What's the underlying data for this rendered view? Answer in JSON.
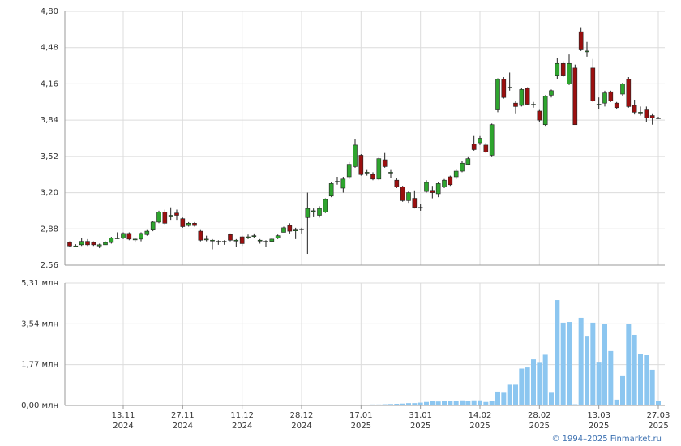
{
  "chart_data": [
    {
      "type": "candlestick",
      "up_color": "#2ea52e",
      "down_color": "#9b0f0f",
      "open": [
        2.76,
        2.73,
        2.74,
        2.77,
        2.76,
        2.73,
        2.74,
        2.76,
        2.8,
        2.8,
        2.84,
        2.79,
        2.79,
        2.83,
        2.87,
        2.94,
        3.03,
        3.0,
        3.02,
        2.97,
        2.91,
        2.93,
        2.86,
        2.79,
        2.78,
        2.77,
        2.77,
        2.83,
        2.78,
        2.81,
        2.81,
        2.82,
        2.78,
        2.77,
        2.77,
        2.8,
        2.85,
        2.91,
        2.87,
        2.88,
        2.98,
        3.04,
        3.0,
        3.03,
        3.17,
        3.3,
        3.24,
        3.34,
        3.43,
        3.53,
        3.38,
        3.36,
        3.32,
        3.49,
        3.38,
        3.31,
        3.25,
        3.13,
        3.15,
        3.07,
        3.21,
        3.22,
        3.19,
        3.25,
        3.34,
        3.34,
        3.39,
        3.45,
        3.63,
        3.64,
        3.62,
        3.53,
        3.93,
        4.2,
        4.13,
        3.99,
        3.97,
        4.12,
        3.98,
        3.92,
        3.8,
        4.06,
        4.23,
        4.34,
        4.16,
        4.3,
        4.62,
        4.45,
        4.3,
        3.98,
        3.99,
        4.09,
        3.99,
        4.07,
        4.2,
        3.97,
        3.91,
        3.93,
        3.88,
        3.86
      ],
      "high": [
        2.77,
        2.745,
        2.8,
        2.79,
        2.77,
        2.75,
        2.77,
        2.81,
        2.85,
        2.85,
        2.85,
        2.8,
        2.85,
        2.87,
        2.95,
        3.04,
        3.05,
        3.07,
        3.05,
        2.98,
        2.94,
        2.94,
        2.87,
        2.82,
        2.79,
        2.78,
        2.78,
        2.84,
        2.79,
        2.82,
        2.83,
        2.84,
        2.79,
        2.78,
        2.8,
        2.83,
        2.9,
        2.93,
        2.89,
        2.89,
        3.2,
        3.06,
        3.08,
        3.15,
        3.29,
        3.34,
        3.34,
        3.47,
        3.67,
        3.54,
        3.4,
        3.38,
        3.51,
        3.55,
        3.4,
        3.33,
        3.26,
        3.21,
        3.22,
        3.1,
        3.31,
        3.26,
        3.29,
        3.32,
        3.35,
        3.41,
        3.48,
        3.52,
        3.7,
        3.7,
        3.64,
        3.81,
        4.21,
        4.22,
        4.26,
        4.01,
        4.12,
        4.13,
        4.0,
        3.93,
        4.06,
        4.11,
        4.39,
        4.36,
        4.42,
        4.33,
        4.66,
        4.53,
        4.38,
        4.04,
        4.1,
        4.1,
        4.0,
        4.17,
        4.22,
        4.02,
        3.96,
        3.96,
        3.9,
        3.87
      ],
      "low": [
        2.72,
        2.72,
        2.73,
        2.73,
        2.73,
        2.71,
        2.74,
        2.75,
        2.79,
        2.79,
        2.78,
        2.76,
        2.77,
        2.82,
        2.86,
        2.93,
        2.92,
        2.96,
        2.96,
        2.89,
        2.9,
        2.9,
        2.77,
        2.77,
        2.7,
        2.74,
        2.74,
        2.77,
        2.72,
        2.73,
        2.79,
        2.8,
        2.75,
        2.72,
        2.76,
        2.79,
        2.85,
        2.84,
        2.79,
        2.84,
        2.66,
        2.99,
        2.98,
        3.02,
        3.16,
        3.27,
        3.2,
        3.32,
        3.42,
        3.35,
        3.35,
        3.31,
        3.31,
        3.42,
        3.33,
        3.24,
        3.12,
        3.11,
        3.06,
        3.04,
        3.2,
        3.15,
        3.16,
        3.24,
        3.26,
        3.32,
        3.38,
        3.44,
        3.57,
        3.62,
        3.55,
        3.52,
        3.91,
        4.03,
        4.1,
        3.9,
        3.96,
        3.97,
        3.95,
        3.82,
        3.79,
        4.04,
        4.2,
        4.22,
        4.15,
        3.8,
        4.45,
        4.4,
        4.0,
        3.94,
        3.96,
        4.0,
        3.94,
        4.05,
        3.95,
        3.89,
        3.88,
        3.82,
        3.8,
        3.85
      ],
      "close": [
        2.73,
        2.73,
        2.77,
        2.74,
        2.74,
        2.74,
        2.76,
        2.8,
        2.8,
        2.84,
        2.79,
        2.79,
        2.84,
        2.86,
        2.94,
        3.03,
        2.93,
        3.0,
        3.0,
        2.9,
        2.93,
        2.91,
        2.78,
        2.79,
        2.78,
        2.77,
        2.77,
        2.78,
        2.78,
        2.75,
        2.81,
        2.82,
        2.78,
        2.77,
        2.79,
        2.82,
        2.89,
        2.86,
        2.87,
        2.88,
        3.06,
        3.04,
        3.06,
        3.14,
        3.28,
        3.3,
        3.32,
        3.45,
        3.62,
        3.36,
        3.38,
        3.32,
        3.5,
        3.43,
        3.38,
        3.25,
        3.13,
        3.2,
        3.07,
        3.07,
        3.29,
        3.2,
        3.28,
        3.31,
        3.27,
        3.39,
        3.46,
        3.5,
        3.58,
        3.68,
        3.56,
        3.8,
        4.2,
        4.04,
        4.13,
        3.96,
        4.11,
        3.98,
        3.98,
        3.84,
        4.05,
        4.1,
        4.34,
        4.23,
        4.34,
        3.8,
        4.46,
        4.45,
        4.01,
        3.98,
        4.08,
        4.01,
        3.95,
        4.16,
        3.96,
        3.91,
        3.91,
        3.86,
        3.86,
        3.86
      ],
      "ylim": [
        2.56,
        4.8
      ],
      "yticks": [
        {
          "value": 2.56,
          "label": "2,56"
        },
        {
          "value": 2.88,
          "label": "2,88"
        },
        {
          "value": 3.2,
          "label": "3,20"
        },
        {
          "value": 3.52,
          "label": "3,52"
        },
        {
          "value": 3.84,
          "label": "3,84"
        },
        {
          "value": 4.16,
          "label": "4,16"
        },
        {
          "value": 4.48,
          "label": "4,48"
        },
        {
          "value": 4.8,
          "label": "4,80"
        }
      ],
      "grid": true
    },
    {
      "type": "bar",
      "color": "#8cc6f0",
      "categories": [
        null,
        null,
        null,
        null,
        null,
        null,
        null,
        null,
        null,
        "13.11\n2024",
        null,
        null,
        null,
        null,
        null,
        null,
        null,
        null,
        null,
        "27.11\n2024",
        null,
        null,
        null,
        null,
        null,
        null,
        null,
        null,
        null,
        "11.12\n2024",
        null,
        null,
        null,
        null,
        null,
        null,
        null,
        null,
        null,
        "28.12\n2024",
        null,
        null,
        null,
        null,
        null,
        null,
        null,
        null,
        null,
        "17.01\n2025",
        null,
        null,
        null,
        null,
        null,
        null,
        null,
        null,
        null,
        "31.01\n2025",
        null,
        null,
        null,
        null,
        null,
        null,
        null,
        null,
        null,
        "14.02\n2025",
        null,
        null,
        null,
        null,
        null,
        null,
        null,
        null,
        null,
        "28.02\n2025",
        null,
        null,
        null,
        null,
        null,
        null,
        null,
        null,
        null,
        "13.03\n2025",
        null,
        null,
        null,
        null,
        null,
        null,
        null,
        null,
        null,
        "27.03\n2025"
      ],
      "values": [
        0.02,
        0.02,
        0.02,
        0.02,
        0.02,
        0.02,
        0.02,
        0.02,
        0.02,
        0.02,
        0.02,
        0.02,
        0.02,
        0.02,
        0.02,
        0.02,
        0.02,
        0.02,
        0.02,
        0.02,
        0.02,
        0.02,
        0.02,
        0.02,
        0.02,
        0.02,
        0.02,
        0.02,
        0.02,
        0.02,
        0.02,
        0.02,
        0.02,
        0.02,
        0.02,
        0.02,
        0.02,
        0.02,
        0.02,
        0.02,
        0.02,
        0.02,
        0.02,
        0.02,
        0.03,
        0.03,
        0.03,
        0.03,
        0.03,
        0.03,
        0.03,
        0.04,
        0.04,
        0.05,
        0.06,
        0.07,
        0.08,
        0.1,
        0.1,
        0.12,
        0.15,
        0.18,
        0.17,
        0.18,
        0.2,
        0.2,
        0.22,
        0.2,
        0.22,
        0.22,
        0.15,
        0.2,
        0.6,
        0.55,
        0.9,
        0.9,
        1.6,
        1.65,
        2.0,
        1.85,
        2.2,
        0.55,
        4.57,
        3.59,
        3.62,
        0.05,
        3.8,
        3.02,
        3.59,
        1.86,
        3.52,
        2.36,
        0.25,
        1.27,
        3.52,
        3.06,
        2.25,
        2.18,
        1.55,
        0.21
      ],
      "ylim": [
        0,
        5.31
      ],
      "yticks": [
        {
          "value": 0,
          "label": "0,00 млн"
        },
        {
          "value": 1.77,
          "label": "1,77 млн"
        },
        {
          "value": 3.54,
          "label": "3,54 млн"
        },
        {
          "value": 5.31,
          "label": "5,31 млн"
        }
      ],
      "grid": true
    }
  ],
  "footer": "© 1994–2025 Finmarket.ru"
}
